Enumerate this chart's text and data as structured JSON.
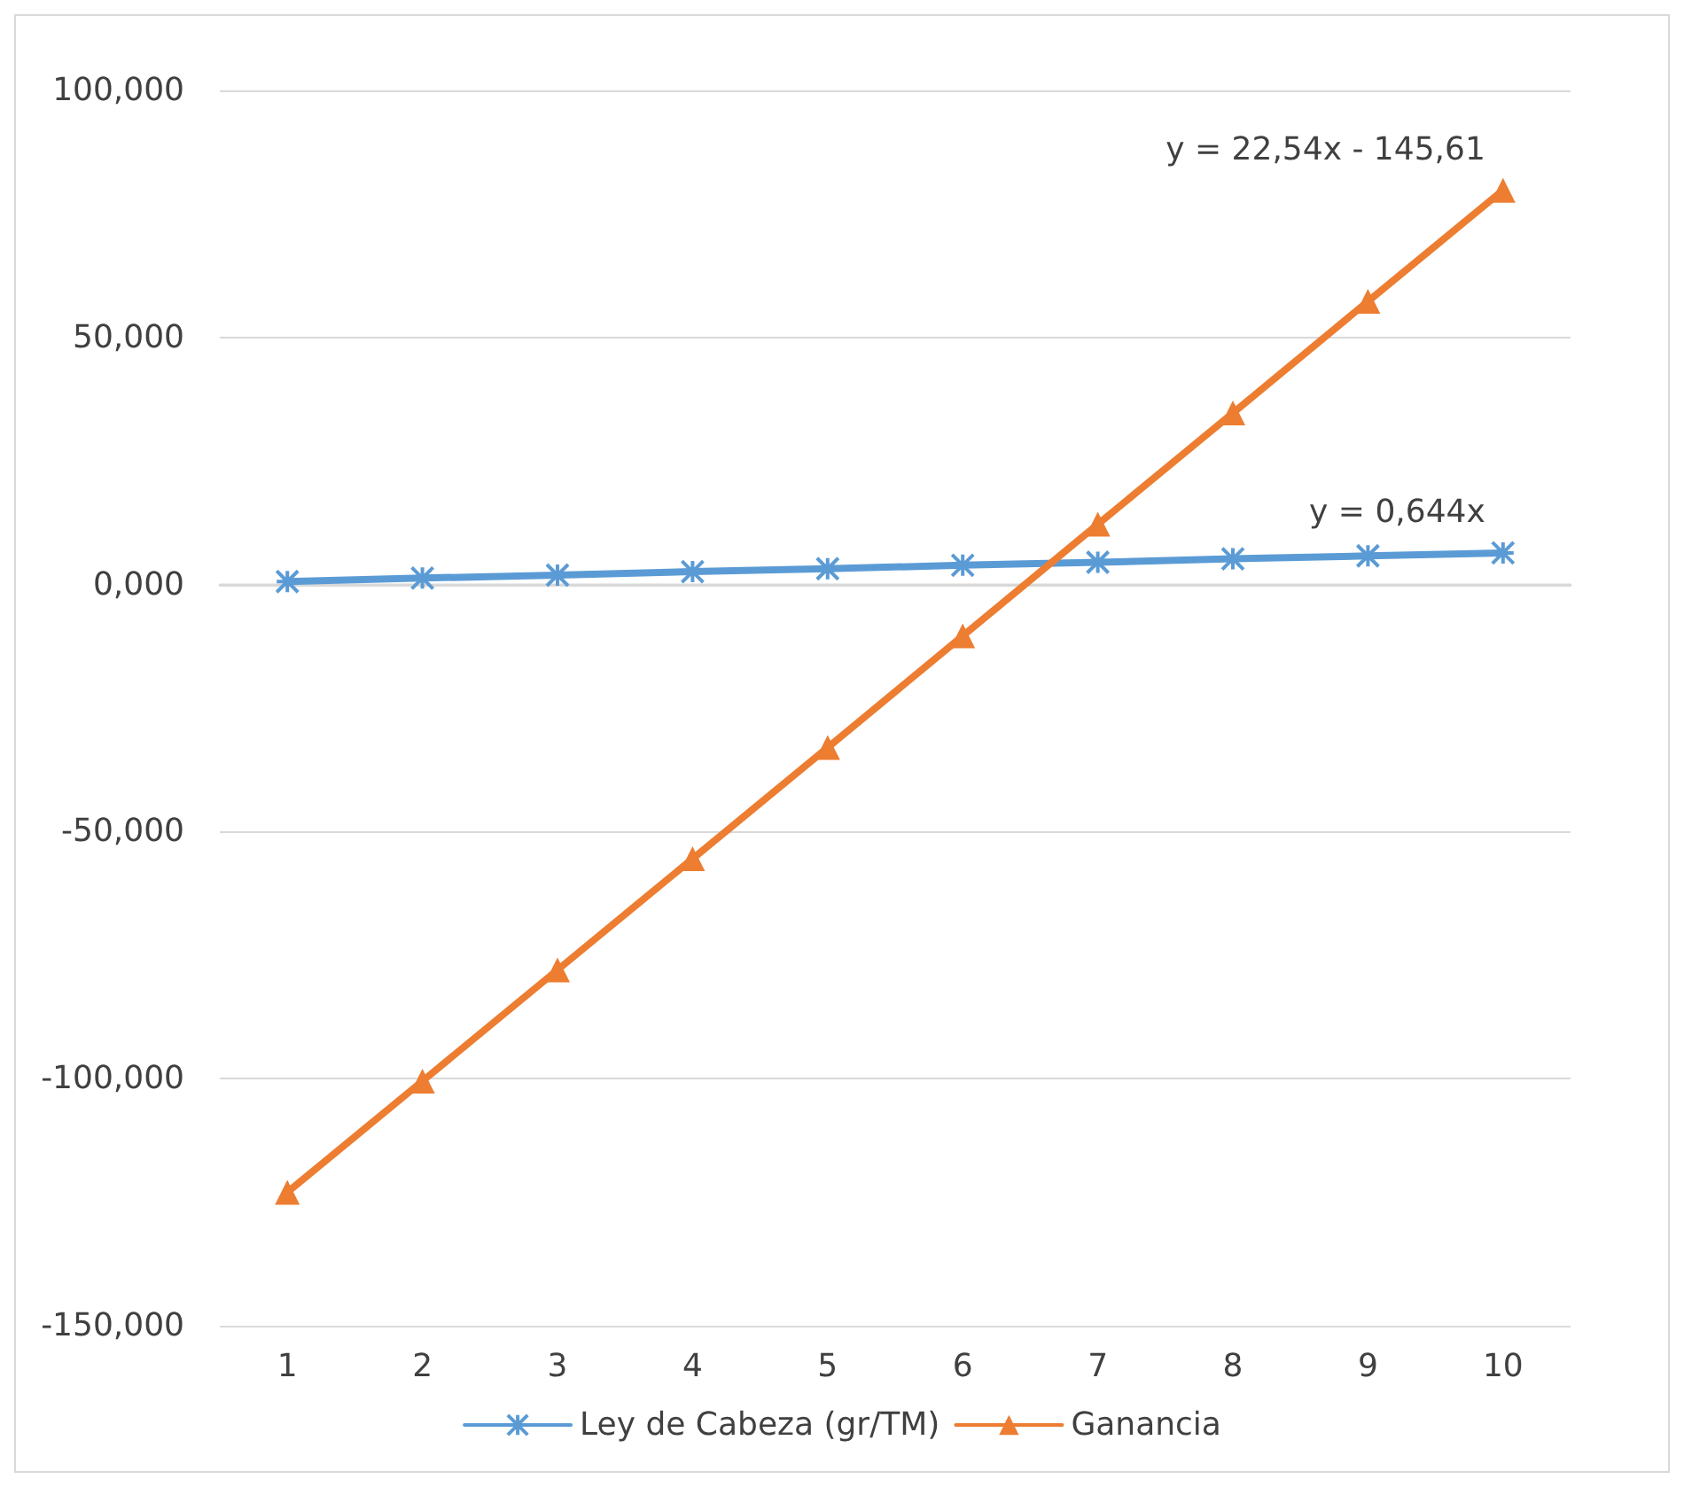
{
  "chart_data": {
    "type": "line",
    "categories": [
      "1",
      "2",
      "3",
      "4",
      "5",
      "6",
      "7",
      "8",
      "9",
      "10"
    ],
    "series": [
      {
        "name": "Ley de Cabeza (gr/TM)",
        "color": "#5b9bd5",
        "marker": "cross",
        "values": [
          0.6,
          1.3,
          1.9,
          2.6,
          3.2,
          3.9,
          4.5,
          5.2,
          5.8,
          6.4
        ]
      },
      {
        "name": "Ganancia",
        "color": "#ed7d31",
        "marker": "triangle",
        "values": [
          -123,
          -100.5,
          -78,
          -55.5,
          -33,
          -10.4,
          12.2,
          34.7,
          57.3,
          79.8
        ]
      }
    ],
    "ylim": [
      -150,
      100
    ],
    "yticks": [
      {
        "value": -150,
        "label": "-150,000"
      },
      {
        "value": -100,
        "label": "-100,000"
      },
      {
        "value": -50,
        "label": "-50,000"
      },
      {
        "value": 0,
        "label": "0,000"
      },
      {
        "value": 50,
        "label": "50,000"
      },
      {
        "value": 100,
        "label": "100,000"
      }
    ],
    "grid": "y",
    "legend": "bottom",
    "annotations": [
      {
        "text": "y = 22,54x - 145,61",
        "x": "10",
        "y": 79.8
      },
      {
        "text": "y = 0,644x",
        "x": "10",
        "y": 6.4
      }
    ]
  }
}
